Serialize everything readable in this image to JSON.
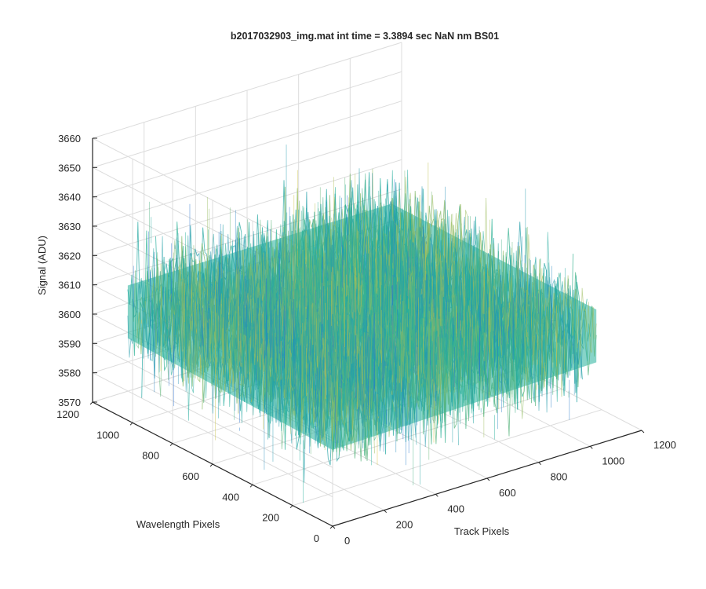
{
  "chart_data": {
    "type": "surface",
    "title": "b2017032903_img.mat int time = 3.3894 sec  NaN nm BS01",
    "xlabel": "Track Pixels",
    "ylabel": "Wavelength Pixels",
    "zlabel": "Signal (ADU)",
    "xlim": [
      0,
      1200
    ],
    "ylim": [
      0,
      1200
    ],
    "zlim": [
      3570,
      3660
    ],
    "x_ticks": [
      0,
      200,
      400,
      600,
      800,
      1000,
      1200
    ],
    "y_ticks": [
      0,
      200,
      400,
      600,
      800,
      1000,
      1200
    ],
    "z_ticks": [
      3570,
      3580,
      3590,
      3600,
      3610,
      3620,
      3630,
      3640,
      3650,
      3660
    ],
    "grid": true,
    "colormap": "parula",
    "data_extent": {
      "x": [
        0,
        1024
      ],
      "y": [
        0,
        1024
      ]
    },
    "signal_level_mean": 3608,
    "signal_noise_range": [
      3575,
      3645
    ]
  },
  "colors": {
    "axis": "#262626",
    "grid": "#dcdcdc",
    "colormap_low": "#2a6fd6",
    "colormap_mid": "#25b09a",
    "colormap_high": "#e3c43a"
  }
}
